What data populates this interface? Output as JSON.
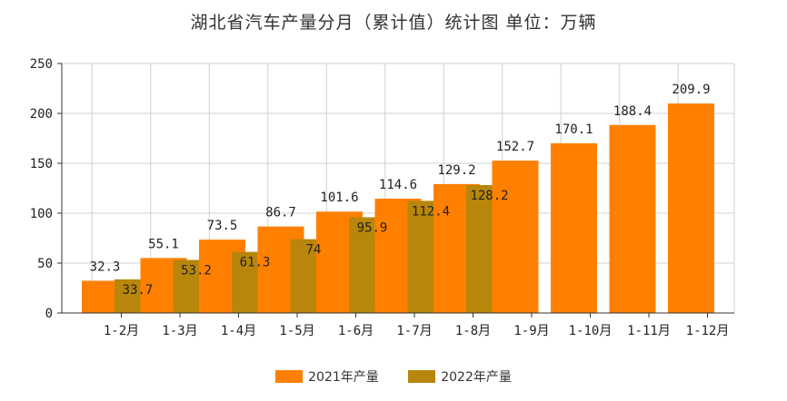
{
  "chart_data": {
    "type": "bar",
    "title": "湖北省汽车产量分月（累计值）统计图 单位：万辆",
    "categories": [
      "1-2月",
      "1-3月",
      "1-4月",
      "1-5月",
      "1-6月",
      "1-7月",
      "1-8月",
      "1-9月",
      "1-10月",
      "1-11月",
      "1-12月"
    ],
    "series": [
      {
        "name": "2021年产量",
        "color": "#FF8000",
        "values": [
          32.3,
          55.1,
          73.5,
          86.7,
          101.6,
          114.6,
          129.2,
          152.7,
          170.1,
          188.4,
          209.9
        ]
      },
      {
        "name": "2022年产量",
        "color": "#B8860B",
        "values": [
          33.7,
          53.2,
          61.3,
          74,
          95.9,
          112.4,
          128.2,
          null,
          null,
          null,
          null
        ]
      }
    ],
    "ylim": [
      0,
      250
    ],
    "yticks": [
      0,
      50,
      100,
      150,
      200,
      250
    ],
    "grid": true,
    "legend_position": "bottom"
  }
}
